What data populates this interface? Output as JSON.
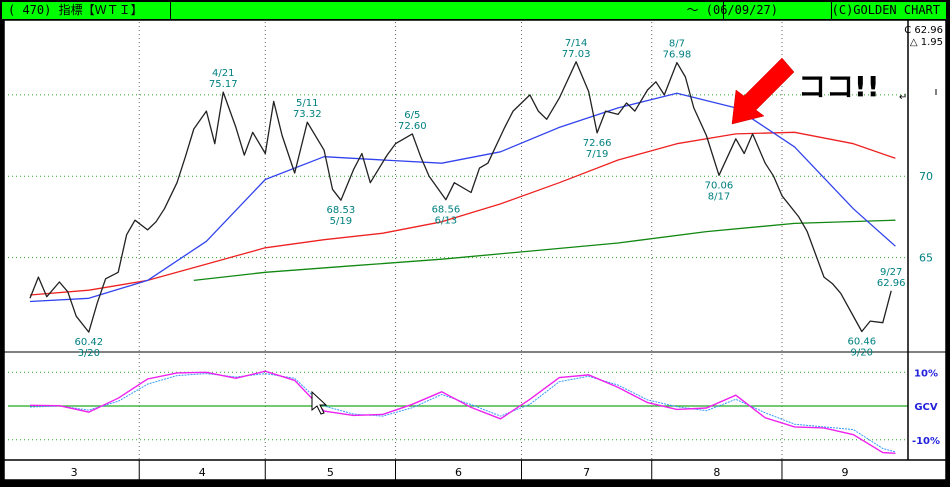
{
  "titlebar": {
    "left": "( 470) 指標【ＷＴＩ】",
    "date": "～ (06/09/27)",
    "credit": "(C)GOLDEN CHART"
  },
  "readout": {
    "close": "C 62.96",
    "change": "△ 1.95"
  },
  "annotation": {
    "text": "ココ!!",
    "mark": "↵"
  },
  "colors": {
    "background": "#ffffff",
    "price": "#222222",
    "ma_short": "#3344ee",
    "ma_mid": "#ee2222",
    "ma_long": "#118811",
    "osc_a": "#ee22ee",
    "osc_b": "#3399ff",
    "grid": "#22aa22",
    "label": "#008080",
    "arrow": "#ff0000"
  },
  "chart_data": [
    {
      "type": "line",
      "title": "",
      "x_axis": {
        "type": "date",
        "months": [
          "3",
          "4",
          "5",
          "6",
          "7",
          "8",
          "9"
        ],
        "range": [
          "2006-03-06",
          "2006-09-29"
        ]
      },
      "y_axis": {
        "ticks": [
          65,
          70
        ],
        "ylim": [
          59.2,
          79.6
        ],
        "side": "right"
      },
      "grid": true,
      "series": [
        {
          "role": "price",
          "values": [
            [
              "2006-03-06",
              62.5
            ],
            [
              "2006-03-08",
              63.8
            ],
            [
              "2006-03-10",
              62.6
            ],
            [
              "2006-03-13",
              63.5
            ],
            [
              "2006-03-15",
              62.9
            ],
            [
              "2006-03-17",
              61.4
            ],
            [
              "2006-03-20",
              60.42
            ],
            [
              "2006-03-22",
              62.2
            ],
            [
              "2006-03-24",
              63.7
            ],
            [
              "2006-03-27",
              64.1
            ],
            [
              "2006-03-29",
              66.4
            ],
            [
              "2006-03-31",
              67.3
            ],
            [
              "2006-04-03",
              66.7
            ],
            [
              "2006-04-05",
              67.2
            ],
            [
              "2006-04-07",
              68.0
            ],
            [
              "2006-04-10",
              69.6
            ],
            [
              "2006-04-12",
              71.2
            ],
            [
              "2006-04-14",
              72.9
            ],
            [
              "2006-04-17",
              74.0
            ],
            [
              "2006-04-19",
              72.0
            ],
            [
              "2006-04-21",
              75.17
            ],
            [
              "2006-04-24",
              73.0
            ],
            [
              "2006-04-26",
              71.3
            ],
            [
              "2006-04-28",
              72.7
            ],
            [
              "2006-05-01",
              71.4
            ],
            [
              "2006-05-03",
              74.6
            ],
            [
              "2006-05-05",
              72.5
            ],
            [
              "2006-05-08",
              70.2
            ],
            [
              "2006-05-11",
              73.32
            ],
            [
              "2006-05-15",
              71.6
            ],
            [
              "2006-05-17",
              69.2
            ],
            [
              "2006-05-19",
              68.53
            ],
            [
              "2006-05-22",
              70.4
            ],
            [
              "2006-05-24",
              71.4
            ],
            [
              "2006-05-26",
              69.6
            ],
            [
              "2006-05-30",
              71.3
            ],
            [
              "2006-06-01",
              72.0
            ],
            [
              "2006-06-05",
              72.6
            ],
            [
              "2006-06-07",
              71.2
            ],
            [
              "2006-06-09",
              70.0
            ],
            [
              "2006-06-13",
              68.56
            ],
            [
              "2006-06-15",
              69.6
            ],
            [
              "2006-06-19",
              69.0
            ],
            [
              "2006-06-21",
              70.5
            ],
            [
              "2006-06-23",
              70.8
            ],
            [
              "2006-06-27",
              73.0
            ],
            [
              "2006-06-29",
              74.0
            ],
            [
              "2006-07-03",
              75.0
            ],
            [
              "2006-07-05",
              74.0
            ],
            [
              "2006-07-07",
              73.5
            ],
            [
              "2006-07-10",
              74.8
            ],
            [
              "2006-07-14",
              77.03
            ],
            [
              "2006-07-17",
              75.2
            ],
            [
              "2006-07-19",
              72.66
            ],
            [
              "2006-07-21",
              74.0
            ],
            [
              "2006-07-24",
              73.8
            ],
            [
              "2006-07-26",
              74.5
            ],
            [
              "2006-07-28",
              74.0
            ],
            [
              "2006-07-31",
              75.3
            ],
            [
              "2006-08-02",
              75.8
            ],
            [
              "2006-08-04",
              75.0
            ],
            [
              "2006-08-07",
              76.98
            ],
            [
              "2006-08-09",
              76.1
            ],
            [
              "2006-08-11",
              74.2
            ],
            [
              "2006-08-14",
              72.5
            ],
            [
              "2006-08-17",
              70.06
            ],
            [
              "2006-08-21",
              72.3
            ],
            [
              "2006-08-23",
              71.4
            ],
            [
              "2006-08-25",
              72.6
            ],
            [
              "2006-08-28",
              70.8
            ],
            [
              "2006-08-30",
              70.0
            ],
            [
              "2006-09-01",
              68.8
            ],
            [
              "2006-09-05",
              67.5
            ],
            [
              "2006-09-07",
              66.6
            ],
            [
              "2006-09-11",
              63.8
            ],
            [
              "2006-09-13",
              63.4
            ],
            [
              "2006-09-15",
              62.8
            ],
            [
              "2006-09-20",
              60.46
            ],
            [
              "2006-09-22",
              61.1
            ],
            [
              "2006-09-25",
              61.0
            ],
            [
              "2006-09-27",
              62.96
            ]
          ]
        },
        {
          "role": "ma_short",
          "values": [
            [
              "2006-03-06",
              62.3
            ],
            [
              "2006-03-20",
              62.5
            ],
            [
              "2006-04-03",
              63.6
            ],
            [
              "2006-04-17",
              66.0
            ],
            [
              "2006-05-01",
              69.8
            ],
            [
              "2006-05-15",
              71.2
            ],
            [
              "2006-05-29",
              71.0
            ],
            [
              "2006-06-12",
              70.8
            ],
            [
              "2006-06-26",
              71.5
            ],
            [
              "2006-07-10",
              73.0
            ],
            [
              "2006-07-24",
              74.2
            ],
            [
              "2006-08-07",
              75.1
            ],
            [
              "2006-08-21",
              74.2
            ],
            [
              "2006-09-04",
              71.8
            ],
            [
              "2006-09-18",
              68.0
            ],
            [
              "2006-09-28",
              65.7
            ]
          ]
        },
        {
          "role": "ma_mid",
          "values": [
            [
              "2006-03-06",
              62.7
            ],
            [
              "2006-03-20",
              63.0
            ],
            [
              "2006-04-03",
              63.6
            ],
            [
              "2006-04-17",
              64.6
            ],
            [
              "2006-05-01",
              65.6
            ],
            [
              "2006-05-15",
              66.1
            ],
            [
              "2006-05-29",
              66.5
            ],
            [
              "2006-06-12",
              67.2
            ],
            [
              "2006-06-26",
              68.3
            ],
            [
              "2006-07-10",
              69.6
            ],
            [
              "2006-07-24",
              71.0
            ],
            [
              "2006-08-07",
              72.0
            ],
            [
              "2006-08-21",
              72.6
            ],
            [
              "2006-09-04",
              72.7
            ],
            [
              "2006-09-18",
              72.0
            ],
            [
              "2006-09-28",
              71.1
            ]
          ]
        },
        {
          "role": "ma_long",
          "values": [
            [
              "2006-04-14",
              63.6
            ],
            [
              "2006-05-01",
              64.1
            ],
            [
              "2006-05-22",
              64.5
            ],
            [
              "2006-06-12",
              64.9
            ],
            [
              "2006-07-03",
              65.4
            ],
            [
              "2006-07-24",
              65.9
            ],
            [
              "2006-08-14",
              66.6
            ],
            [
              "2006-09-04",
              67.1
            ],
            [
              "2006-09-28",
              67.3
            ]
          ]
        }
      ],
      "labels": [
        {
          "date": "2006-03-20",
          "value": 60.42,
          "text": [
            "60.42",
            "3/20"
          ],
          "pos": "below"
        },
        {
          "date": "2006-04-21",
          "value": 75.17,
          "text": [
            "4/21",
            "75.17"
          ],
          "pos": "above"
        },
        {
          "date": "2006-05-11",
          "value": 73.32,
          "text": [
            "5/11",
            "73.32"
          ],
          "pos": "above"
        },
        {
          "date": "2006-05-19",
          "value": 68.53,
          "text": [
            "68.53",
            "5/19"
          ],
          "pos": "below"
        },
        {
          "date": "2006-06-05",
          "value": 72.6,
          "text": [
            "6/5",
            "72.60"
          ],
          "pos": "above"
        },
        {
          "date": "2006-06-13",
          "value": 68.56,
          "text": [
            "68.56",
            "6/13"
          ],
          "pos": "below"
        },
        {
          "date": "2006-07-14",
          "value": 77.03,
          "text": [
            "7/14",
            "77.03"
          ],
          "pos": "above"
        },
        {
          "date": "2006-07-19",
          "value": 72.66,
          "text": [
            "72.66",
            "7/19"
          ],
          "pos": "below"
        },
        {
          "date": "2006-08-07",
          "value": 76.98,
          "text": [
            "8/7",
            "76.98"
          ],
          "pos": "above"
        },
        {
          "date": "2006-08-17",
          "value": 70.06,
          "text": [
            "70.06",
            "8/17"
          ],
          "pos": "below"
        },
        {
          "date": "2006-09-20",
          "value": 60.46,
          "text": [
            "60.46",
            "9/20"
          ],
          "pos": "below"
        },
        {
          "date": "2006-09-27",
          "value": 62.96,
          "text": [
            "9/27",
            "62.96"
          ],
          "pos": "above"
        }
      ]
    },
    {
      "type": "line",
      "title": "",
      "x_axis": {
        "type": "date",
        "range": [
          "2006-03-06",
          "2006-09-29"
        ]
      },
      "y_axis": {
        "ticks": [
          "10%",
          "GCV",
          "-10%"
        ],
        "tick_values": [
          10,
          0,
          -10
        ],
        "ylim": [
          -16,
          16
        ],
        "side": "right"
      },
      "grid": true,
      "series": [
        {
          "role": "osc_a",
          "values": [
            [
              "2006-03-06",
              0.2
            ],
            [
              "2006-03-13",
              0.1
            ],
            [
              "2006-03-20",
              -1.8
            ],
            [
              "2006-03-27",
              2.3
            ],
            [
              "2006-04-03",
              8.0
            ],
            [
              "2006-04-10",
              9.8
            ],
            [
              "2006-04-17",
              10.0
            ],
            [
              "2006-04-24",
              8.2
            ],
            [
              "2006-05-01",
              10.3
            ],
            [
              "2006-05-08",
              7.6
            ],
            [
              "2006-05-15",
              -1.5
            ],
            [
              "2006-05-22",
              -2.8
            ],
            [
              "2006-05-29",
              -2.5
            ],
            [
              "2006-06-05",
              0.5
            ],
            [
              "2006-06-12",
              4.2
            ],
            [
              "2006-06-19",
              -0.4
            ],
            [
              "2006-06-26",
              -3.8
            ],
            [
              "2006-07-03",
              2.0
            ],
            [
              "2006-07-10",
              8.4
            ],
            [
              "2006-07-17",
              9.2
            ],
            [
              "2006-07-24",
              5.5
            ],
            [
              "2006-07-31",
              1.0
            ],
            [
              "2006-08-07",
              -1.0
            ],
            [
              "2006-08-14",
              -0.6
            ],
            [
              "2006-08-21",
              3.2
            ],
            [
              "2006-08-28",
              -3.5
            ],
            [
              "2006-09-04",
              -6.2
            ],
            [
              "2006-09-11",
              -6.5
            ],
            [
              "2006-09-18",
              -8.5
            ],
            [
              "2006-09-25",
              -13.8
            ],
            [
              "2006-09-28",
              -14.0
            ],
            [
              "2006-10-03",
              -9.5
            ]
          ]
        },
        {
          "role": "osc_b",
          "values": [
            [
              "2006-03-06",
              -0.3
            ],
            [
              "2006-03-13",
              0.0
            ],
            [
              "2006-03-20",
              -1.2
            ],
            [
              "2006-03-27",
              1.4
            ],
            [
              "2006-04-03",
              6.5
            ],
            [
              "2006-04-10",
              9.0
            ],
            [
              "2006-04-17",
              9.6
            ],
            [
              "2006-04-24",
              8.6
            ],
            [
              "2006-05-01",
              9.6
            ],
            [
              "2006-05-08",
              8.2
            ],
            [
              "2006-05-15",
              0.0
            ],
            [
              "2006-05-22",
              -2.4
            ],
            [
              "2006-05-29",
              -3.0
            ],
            [
              "2006-06-05",
              -0.5
            ],
            [
              "2006-06-12",
              3.4
            ],
            [
              "2006-06-19",
              0.4
            ],
            [
              "2006-06-26",
              -3.0
            ],
            [
              "2006-07-03",
              0.5
            ],
            [
              "2006-07-10",
              7.2
            ],
            [
              "2006-07-17",
              8.8
            ],
            [
              "2006-07-24",
              6.2
            ],
            [
              "2006-07-31",
              1.8
            ],
            [
              "2006-08-07",
              -0.2
            ],
            [
              "2006-08-14",
              -1.4
            ],
            [
              "2006-08-21",
              2.0
            ],
            [
              "2006-08-28",
              -2.0
            ],
            [
              "2006-09-04",
              -5.4
            ],
            [
              "2006-09-11",
              -6.2
            ],
            [
              "2006-09-18",
              -7.0
            ],
            [
              "2006-09-25",
              -12.6
            ],
            [
              "2006-09-28",
              -13.6
            ],
            [
              "2006-10-03",
              -11.5
            ]
          ]
        }
      ]
    }
  ]
}
